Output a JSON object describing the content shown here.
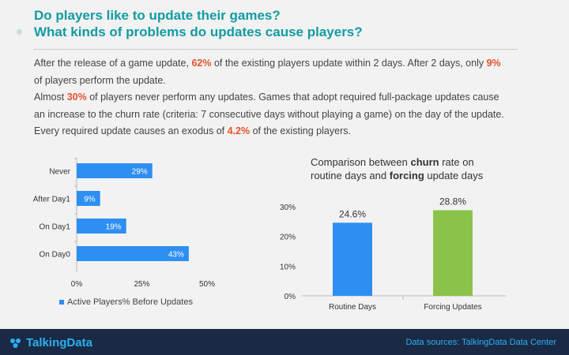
{
  "header": {
    "title_line1": "Do players like to update their games?",
    "title_line2": "What kinds of problems do updates cause players?"
  },
  "body": {
    "p1_a": "After the release of a game update, ",
    "p1_b": "62%",
    "p1_c": " of the existing players update within 2 days. After 2 days, only ",
    "p1_d": "9%",
    "p2": "of players perform the update.",
    "p3_a": "Almost ",
    "p3_b": "30%",
    "p3_c": " of players never perform any updates. Games that adopt required full-package updates cause",
    "p4": "an increase to the churn rate (criteria: 7 consecutive days without playing a game) on the day of the update.",
    "p5_a": "Every required update causes an exodus of ",
    "p5_b": "4.2%",
    "p5_c": " of the existing players."
  },
  "right_title": {
    "l1_a": "Comparison between ",
    "l1_b": "churn",
    "l1_c": " rate on",
    "l2_a": "routine days and ",
    "l2_b": "forcing",
    "l2_c": " update days"
  },
  "chart_data": [
    {
      "type": "bar",
      "orientation": "horizontal",
      "categories": [
        "Never",
        "After Day1",
        "On Day1",
        "On Day0"
      ],
      "series": [
        {
          "name": "Active Players% Before Updates",
          "values": [
            29,
            9,
            19,
            43
          ]
        }
      ],
      "value_labels": [
        "29%",
        "9%",
        "19%",
        "43%"
      ],
      "xlim": [
        0,
        50
      ],
      "xticks": [
        "0%",
        "25%",
        "50%"
      ],
      "legend_position": "bottom-left",
      "color": "#2e8ff2"
    },
    {
      "type": "bar",
      "categories": [
        "Routine Days",
        "Forcing Updates"
      ],
      "values": [
        24.6,
        28.8
      ],
      "value_labels": [
        "24.6%",
        "28.8%"
      ],
      "colors": [
        "#2e8ff2",
        "#8bc34a"
      ],
      "ylim": [
        0,
        30
      ],
      "yticks": [
        "0%",
        "10%",
        "20%",
        "30%"
      ]
    }
  ],
  "footer": {
    "logo": "TalkingData",
    "source": "Data sources: TalkingData Data Center"
  }
}
